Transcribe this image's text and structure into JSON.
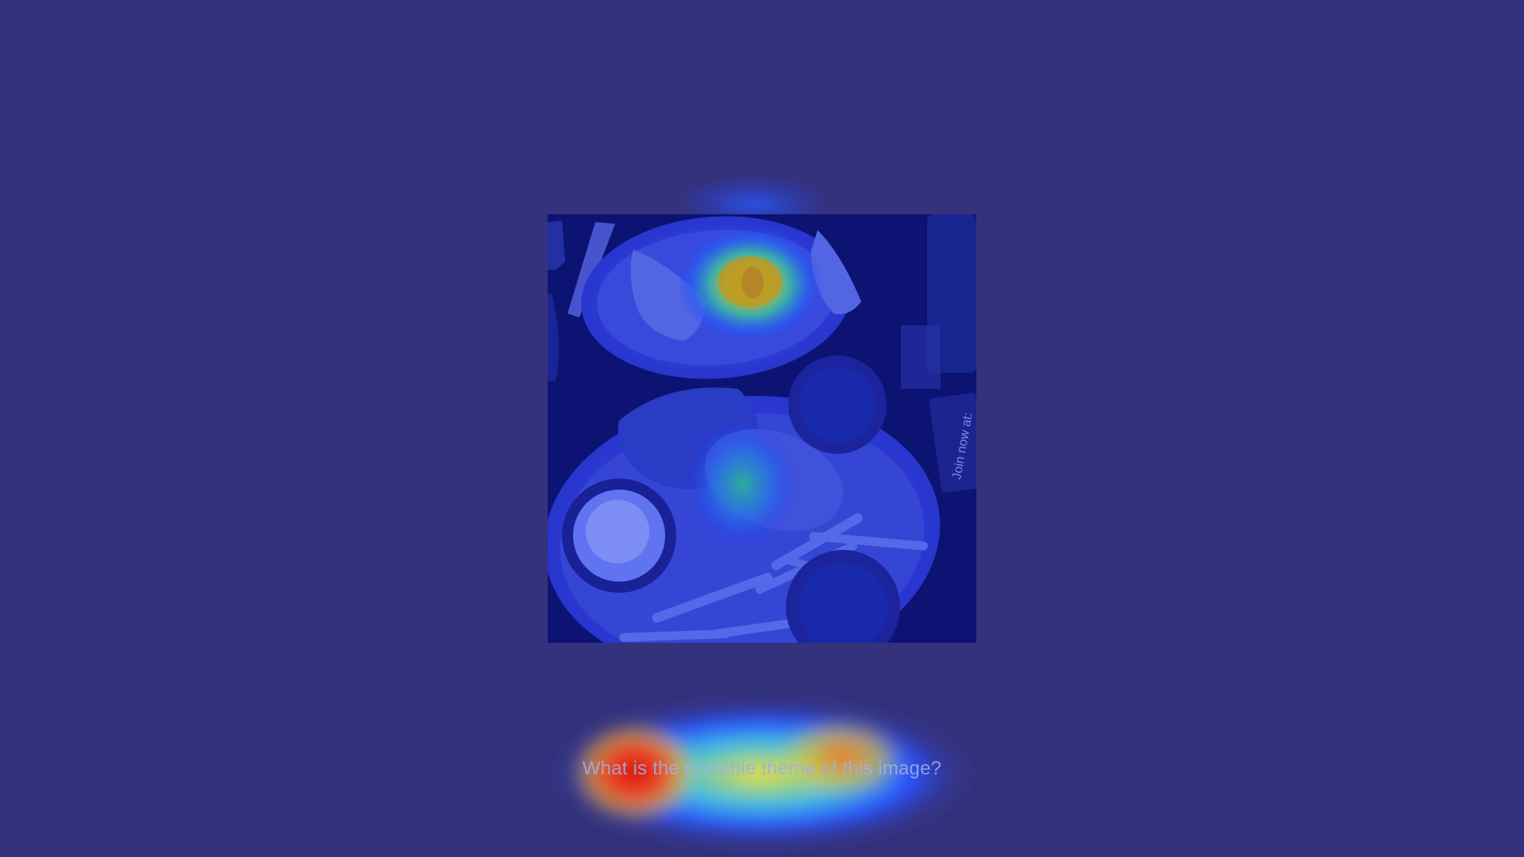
{
  "question": {
    "text": "What is the possible theme of this image?"
  },
  "photo": {
    "subject": "two plates of food on a dark table with a heatmap overlay",
    "sign_text": "Join now at:"
  },
  "colors": {
    "background": "#34327d",
    "heat_high": "#e02010",
    "heat_mid": "#f0e030",
    "heat_low": "#2060ff"
  }
}
